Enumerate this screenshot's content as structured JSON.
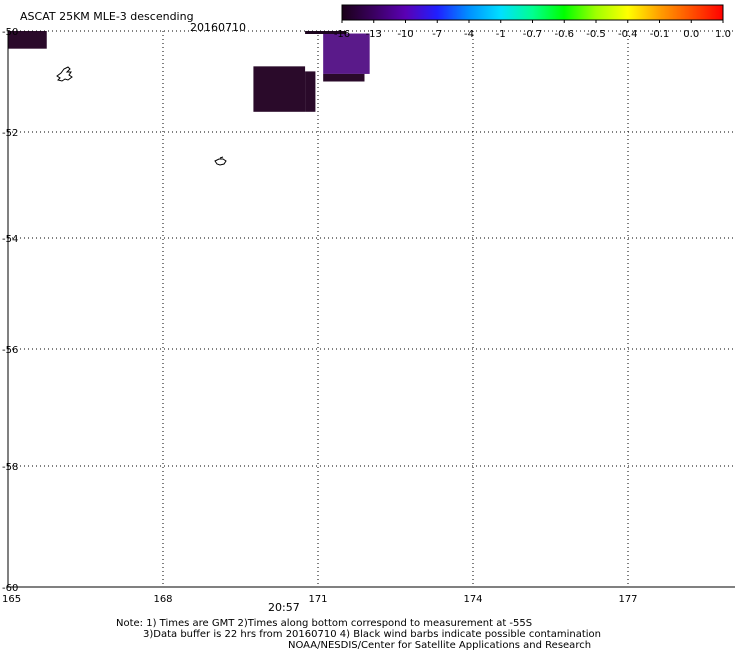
{
  "header": {
    "title": "ASCAT 25KM MLE-3 descending",
    "date": "20160710"
  },
  "colorbar": {
    "labels": [
      "-16",
      "-13",
      "-10",
      "-7",
      "-4",
      "-1",
      "-0.7",
      "-0.6",
      "-0.5",
      "-0.4",
      "-0.1",
      "0.0",
      "1.0"
    ],
    "colors": [
      "#1a0018",
      "#3a0060",
      "#5a00b4",
      "#2020ff",
      "#0090ff",
      "#00e0ff",
      "#00ff90",
      "#00ff00",
      "#a0ff00",
      "#ffff00",
      "#ffa000",
      "#ff5000",
      "#ff0000"
    ]
  },
  "time_label": "20:57",
  "notes": [
    "Note: 1) Times are GMT 2)Times along bottom correspond to measurement at -55S",
    "3)Data buffer is 22 hrs from 20160710 4) Black wind barbs indicate possible contamination",
    "NOAA/NESDIS/Center for Satellite Applications and Research"
  ],
  "colors": {
    "grid": "#000000",
    "time_label": "#cc0000",
    "swath_dark": "#2a0a2a",
    "swath_purple": "#5a1a8a",
    "swath_dark2": "#1e0620"
  },
  "chart_data": {
    "type": "heatmap",
    "title": "ASCAT 25KM MLE-3 descending",
    "xlabel": "",
    "ylabel": "",
    "xlim": [
      165,
      179
    ],
    "ylim": [
      -60,
      -50
    ],
    "x_ticks": [
      165,
      168,
      171,
      174,
      177
    ],
    "x_tick_labels": [
      "165",
      "168",
      "171",
      "174",
      "177"
    ],
    "y_ticks": [
      -50,
      -52,
      -54,
      -56,
      -58,
      -60
    ],
    "y_tick_labels": [
      "-50",
      "-52",
      "-54",
      "-56",
      "-58",
      "-60"
    ],
    "grid": true,
    "swaths": [
      {
        "lon": [
          165.0,
          165.75
        ],
        "lat": [
          -50.0,
          -50.35
        ],
        "value": -16
      },
      {
        "lon": [
          169.75,
          170.75
        ],
        "lat": [
          -50.7,
          -51.6
        ],
        "value": -16
      },
      {
        "lon": [
          170.75,
          170.95
        ],
        "lat": [
          -50.8,
          -51.6
        ],
        "value": -16
      },
      {
        "lon": [
          171.1,
          172.0
        ],
        "lat": [
          -50.05,
          -50.85
        ],
        "value": -13
      },
      {
        "lon": [
          171.1,
          171.9
        ],
        "lat": [
          -50.85,
          -51.0
        ],
        "value": -16
      }
    ]
  }
}
